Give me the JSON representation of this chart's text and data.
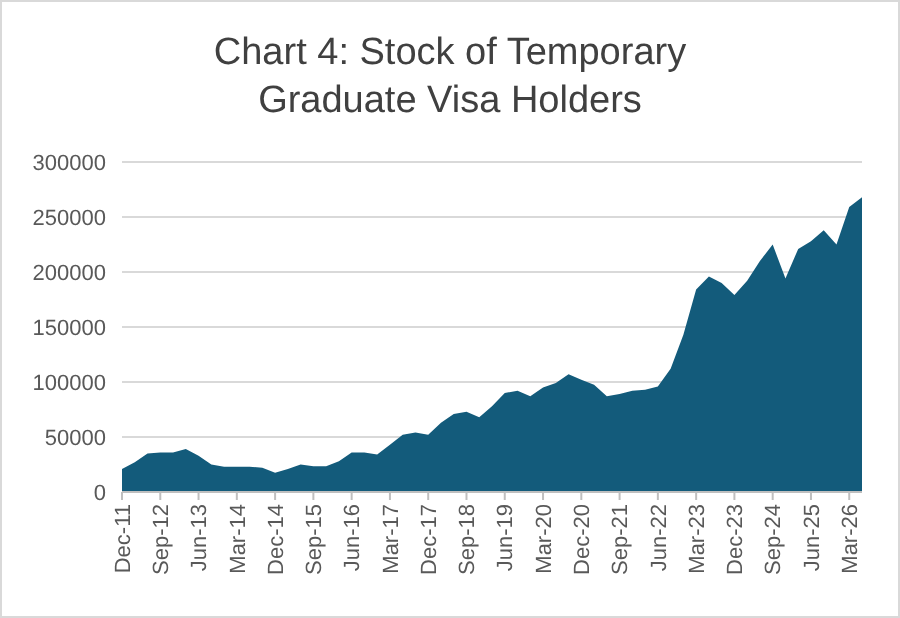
{
  "chart_data": {
    "type": "area",
    "title": "Chart 4: Stock of Temporary Graduate Visa Holders",
    "categories": [
      "Dec-11",
      null,
      null,
      "Sep-12",
      null,
      null,
      "Jun-13",
      null,
      null,
      "Mar-14",
      null,
      null,
      "Dec-14",
      null,
      null,
      "Sep-15",
      null,
      null,
      "Jun-16",
      null,
      null,
      "Mar-17",
      null,
      null,
      "Dec-17",
      null,
      null,
      "Sep-18",
      null,
      null,
      "Jun-19",
      null,
      null,
      "Mar-20",
      null,
      null,
      "Dec-20",
      null,
      null,
      "Sep-21",
      null,
      null,
      "Jun-22",
      null,
      null,
      "Mar-23",
      null,
      null,
      "Dec-23",
      null,
      null,
      "Sep-24",
      null,
      null,
      "Jun-25",
      null,
      null,
      "Mar-26",
      null
    ],
    "series": [
      {
        "color": "#135b7b",
        "values": [
          21000,
          27000,
          35000,
          36000,
          36000,
          39000,
          33000,
          25000,
          23000,
          23000,
          23000,
          22000,
          17500,
          21000,
          25000,
          23500,
          23500,
          28000,
          36000,
          36000,
          34000,
          43000,
          52000,
          54000,
          52000,
          63000,
          71000,
          73000,
          68000,
          78000,
          90000,
          92000,
          87000,
          95000,
          99000,
          107000,
          102000,
          97500,
          87000,
          89000,
          92000,
          93000,
          96000,
          112000,
          143000,
          184000,
          196000,
          190000,
          179000,
          192000,
          210000,
          225000,
          194000,
          221000,
          228000,
          238000,
          225000,
          259000,
          268000
        ]
      }
    ],
    "ylim": [
      0,
      300000
    ],
    "yticks": [
      0,
      50000,
      100000,
      150000,
      200000,
      250000,
      300000
    ],
    "grid": "y"
  }
}
